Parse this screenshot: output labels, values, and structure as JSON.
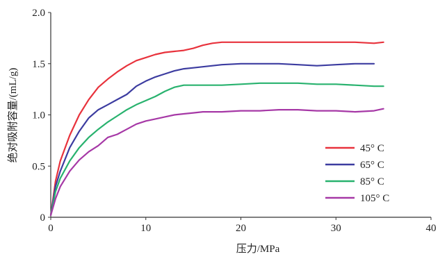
{
  "chart_data": {
    "type": "line",
    "title": "",
    "xlabel": "压力/MPa",
    "ylabel": "绝对吸附容量/(mL/g)",
    "xlim": [
      0,
      40
    ],
    "ylim": [
      0,
      2.0
    ],
    "x_ticks": [
      "0",
      "10",
      "20",
      "30",
      "40"
    ],
    "y_ticks": [
      "0",
      "0.5",
      "1.0",
      "1.5",
      "2.0"
    ],
    "grid": false,
    "legend_position": "bottom-right",
    "series": [
      {
        "name": "45° C",
        "color": "#e8323c",
        "x": [
          0,
          0.5,
          1,
          2,
          3,
          4,
          5,
          6,
          7,
          8,
          9,
          10,
          11,
          12,
          13,
          14,
          15,
          16,
          17,
          18,
          20,
          22,
          24,
          26,
          28,
          30,
          32,
          34,
          35
        ],
        "y": [
          0.02,
          0.35,
          0.55,
          0.8,
          1.0,
          1.15,
          1.27,
          1.35,
          1.42,
          1.48,
          1.53,
          1.56,
          1.59,
          1.61,
          1.62,
          1.63,
          1.65,
          1.68,
          1.7,
          1.71,
          1.71,
          1.71,
          1.71,
          1.71,
          1.71,
          1.71,
          1.71,
          1.7,
          1.71
        ]
      },
      {
        "name": "65° C",
        "color": "#3c3ca0",
        "x": [
          0,
          0.5,
          1,
          2,
          3,
          4,
          5,
          6,
          7,
          8,
          9,
          10,
          11,
          12,
          13,
          14,
          15,
          16,
          18,
          20,
          22,
          24,
          26,
          28,
          30,
          32,
          34
        ],
        "y": [
          0.02,
          0.3,
          0.45,
          0.68,
          0.84,
          0.97,
          1.05,
          1.1,
          1.15,
          1.2,
          1.28,
          1.33,
          1.37,
          1.4,
          1.43,
          1.45,
          1.46,
          1.47,
          1.49,
          1.5,
          1.5,
          1.5,
          1.49,
          1.48,
          1.49,
          1.5,
          1.5
        ]
      },
      {
        "name": "85° C",
        "color": "#28b26e",
        "x": [
          0,
          0.5,
          1,
          2,
          3,
          4,
          5,
          6,
          7,
          8,
          9,
          10,
          11,
          12,
          13,
          14,
          15,
          16,
          18,
          20,
          22,
          24,
          26,
          28,
          30,
          32,
          34,
          35
        ],
        "y": [
          0.02,
          0.25,
          0.38,
          0.55,
          0.68,
          0.78,
          0.86,
          0.93,
          0.99,
          1.05,
          1.1,
          1.14,
          1.18,
          1.23,
          1.27,
          1.29,
          1.29,
          1.29,
          1.29,
          1.3,
          1.31,
          1.31,
          1.31,
          1.3,
          1.3,
          1.29,
          1.28,
          1.28
        ]
      },
      {
        "name": "105° C",
        "color": "#a638a6",
        "x": [
          0,
          0.5,
          1,
          2,
          3,
          4,
          5,
          6,
          7,
          8,
          9,
          10,
          11,
          12,
          13,
          14,
          15,
          16,
          18,
          20,
          22,
          24,
          26,
          28,
          30,
          32,
          34,
          35
        ],
        "y": [
          0.02,
          0.18,
          0.3,
          0.45,
          0.56,
          0.64,
          0.7,
          0.78,
          0.81,
          0.86,
          0.91,
          0.94,
          0.96,
          0.98,
          1.0,
          1.01,
          1.02,
          1.03,
          1.03,
          1.04,
          1.04,
          1.05,
          1.05,
          1.04,
          1.04,
          1.03,
          1.04,
          1.06
        ]
      }
    ]
  }
}
